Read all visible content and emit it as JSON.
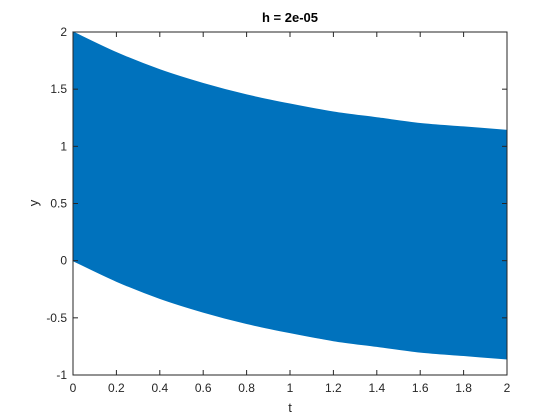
{
  "chart_data": {
    "type": "area",
    "title": "h = 2e-05",
    "xlabel": "t",
    "ylabel": "y",
    "xlim": [
      0,
      2
    ],
    "ylim": [
      -1,
      2
    ],
    "xticks": [
      "0",
      "0.2",
      "0.4",
      "0.6",
      "0.8",
      "1",
      "1.2",
      "1.4",
      "1.6",
      "1.8",
      "2"
    ],
    "yticks": [
      "-1",
      "-0.5",
      "0",
      "0.5",
      "1",
      "1.5",
      "2"
    ],
    "grid": false,
    "legend": "none",
    "series": [
      {
        "color": "#0072BD",
        "x": [
          0,
          0.2,
          0.4,
          0.6,
          0.8,
          1.0,
          1.2,
          1.4,
          1.6,
          1.8,
          2.0
        ],
        "upper": [
          2.0,
          1.82,
          1.67,
          1.55,
          1.45,
          1.37,
          1.3,
          1.25,
          1.2,
          1.17,
          1.14
        ],
        "lower": [
          0.0,
          -0.18,
          -0.33,
          -0.45,
          -0.55,
          -0.63,
          -0.7,
          -0.75,
          -0.8,
          -0.83,
          -0.86
        ]
      }
    ]
  }
}
